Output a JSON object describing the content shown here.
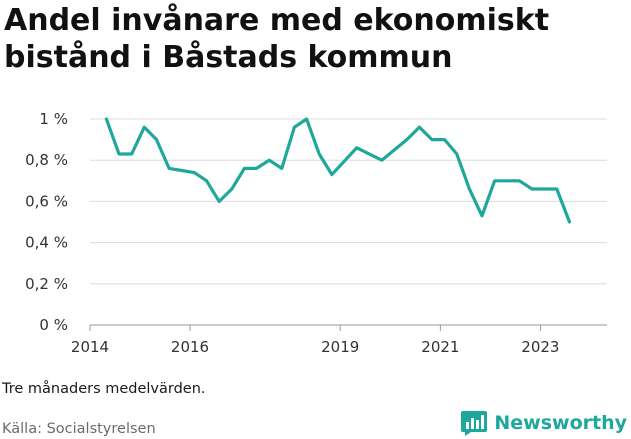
{
  "title": "Andel invånare med ekonomiskt bistånd i Båstads kommun",
  "note": "Tre månaders medelvärden.",
  "source": "Källa: Socialstyrelsen",
  "brand": {
    "name": "Newsworthy",
    "color": "#1ea89b",
    "icon": "newsworthy-logo-icon"
  },
  "chart_data": {
    "type": "line",
    "title": "Andel invånare med ekonomiskt bistånd i Båstads kommun",
    "xlabel": "",
    "ylabel": "",
    "ylim": [
      0,
      1
    ],
    "yticks": [
      {
        "value": 0,
        "label": "0 %"
      },
      {
        "value": 0.2,
        "label": "0,2 %"
      },
      {
        "value": 0.4,
        "label": "0,4 %"
      },
      {
        "value": 0.6,
        "label": "0,6 %"
      },
      {
        "value": 0.8,
        "label": "0,8 %"
      },
      {
        "value": 1.0,
        "label": "1 %"
      }
    ],
    "xlim": [
      "2014-01-01",
      "2024-05-01"
    ],
    "xticks": [
      {
        "value": "2014-01-01",
        "label": "2014"
      },
      {
        "value": "2016-01-01",
        "label": "2016"
      },
      {
        "value": "2019-01-01",
        "label": "2019"
      },
      {
        "value": "2021-01-01",
        "label": "2021"
      },
      {
        "value": "2023-01-01",
        "label": "2023"
      }
    ],
    "grid": true,
    "line_color": "#1ea89b",
    "series": [
      {
        "x": [
          "2014-05-01",
          "2014-08-01",
          "2014-11-01",
          "2015-02-01",
          "2015-05-01",
          "2015-08-01",
          "2015-11-01",
          "2016-02-01",
          "2016-05-01",
          "2016-08-01",
          "2016-11-01",
          "2017-02-01",
          "2017-05-01",
          "2017-08-01",
          "2017-11-01",
          "2018-02-01",
          "2018-05-01",
          "2018-08-01",
          "2018-11-01",
          "2019-05-01",
          "2019-11-01",
          "2020-05-01",
          "2020-08-01",
          "2020-11-01",
          "2021-02-01",
          "2021-05-01",
          "2021-08-01",
          "2021-11-01",
          "2022-02-01",
          "2022-05-01",
          "2022-08-01",
          "2022-11-01",
          "2023-02-01",
          "2023-05-01",
          "2023-08-01"
        ],
        "y": [
          1.0,
          0.83,
          0.83,
          0.96,
          0.9,
          0.76,
          0.75,
          0.74,
          0.7,
          0.6,
          0.66,
          0.76,
          0.76,
          0.8,
          0.76,
          0.96,
          1.0,
          0.83,
          0.73,
          0.86,
          0.8,
          0.9,
          0.96,
          0.9,
          0.9,
          0.83,
          0.66,
          0.53,
          0.7,
          0.7,
          0.7,
          0.66,
          0.66,
          0.66,
          0.5
        ]
      }
    ]
  }
}
